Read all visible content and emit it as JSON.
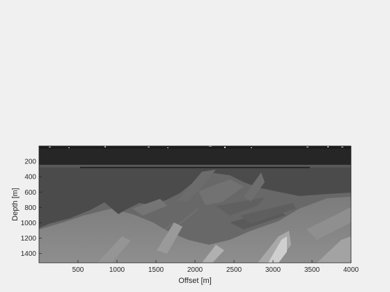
{
  "chart_data": {
    "type": "heatmap",
    "title": "",
    "xlabel": "Offset [m]",
    "ylabel": "Depth [m]",
    "xlim": [
      0,
      4000
    ],
    "ylim": [
      0,
      1520
    ],
    "y_reversed": true,
    "colormap": "gray",
    "x_ticks": [
      500,
      1000,
      1500,
      2000,
      2500,
      3000,
      3500,
      4000
    ],
    "x_tick_labels": [
      "500",
      "1000",
      "1500",
      "2000",
      "2500",
      "3000",
      "3500",
      "4000"
    ],
    "y_ticks": [
      200,
      400,
      600,
      800,
      1000,
      1200,
      1400
    ],
    "y_tick_labels": [
      "200",
      "400",
      "600",
      "800",
      "1000",
      "1200",
      "1400"
    ],
    "grid": false,
    "colors": {
      "background": "#f0f0f0",
      "water_layer": "#262626",
      "shallow_layer": "#4b4b4b",
      "mid_layer": "#656565",
      "deep_layer": "#828282",
      "bright_body": "#c4c4c4"
    }
  }
}
